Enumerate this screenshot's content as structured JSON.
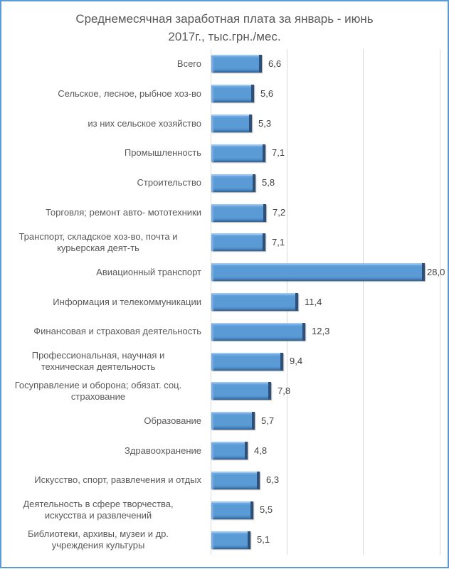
{
  "chart_data": {
    "type": "bar",
    "orientation": "horizontal",
    "title": "Среднемесячная заработная плата за январь - июнь 2017г., тыс.грн./мес.",
    "title_lines": [
      "Среднемесячная заработная плата за январь - июнь",
      "2017г., тыс.грн./мес."
    ],
    "xlabel": "",
    "ylabel": "",
    "xlim": [
      0,
      30
    ],
    "gridlines_at": [
      10,
      20,
      30
    ],
    "grid": true,
    "legend": null,
    "bar_color": "#5b9bd5",
    "categories": [
      "Всего",
      "Сельское, лесное, рыбное хоз-во",
      "из них сельское хозяйство",
      "Промышленность",
      "Строительство",
      "Торговля; ремонт авто- мототехники",
      "Транспорт, складское хоз-во, почта и курьерская деят-ть",
      "Авиационный транспорт",
      "Информация и телекоммуникации",
      "Финансовая и страховая деятельность",
      "Профессиональная, научная и техническая деятельность",
      "Госуправление и оборона; обязат. соц. страхование",
      "Образование",
      "Здравоохранение",
      "Искусство, спорт, развлечения и отдых",
      "Деятельность в сфере творчества, искусства и развлечений",
      "Библиотеки, архивы, музеи и др. учреждения культуры"
    ],
    "values": [
      6.6,
      5.6,
      5.3,
      7.1,
      5.8,
      7.2,
      7.1,
      28.0,
      11.4,
      12.3,
      9.4,
      7.8,
      5.7,
      4.8,
      6.3,
      5.5,
      5.1
    ],
    "value_labels": [
      "6,6",
      "5,6",
      "5,3",
      "7,1",
      "5,8",
      "7,2",
      "7,1",
      "28,0",
      "11,4",
      "12,3",
      "9,4",
      "7,8",
      "5,7",
      "4,8",
      "6,3",
      "5,5",
      "5,1"
    ]
  },
  "rows": [
    {
      "lines": [
        "Всего"
      ],
      "value": 6.6,
      "label": "6,6"
    },
    {
      "lines": [
        "Сельское, лесное, рыбное хоз-во"
      ],
      "value": 5.6,
      "label": "5,6"
    },
    {
      "lines": [
        "из них сельское хозяйство"
      ],
      "value": 5.3,
      "label": "5,3"
    },
    {
      "lines": [
        "Промышленность"
      ],
      "value": 7.1,
      "label": "7,1"
    },
    {
      "lines": [
        "Строительство"
      ],
      "value": 5.8,
      "label": "5,8"
    },
    {
      "lines": [
        "Торговля; ремонт авто- мототехники"
      ],
      "value": 7.2,
      "label": "7,2"
    },
    {
      "lines": [
        "Транспорт, складское хоз-во, почта и",
        "курьерская деят-ть"
      ],
      "value": 7.1,
      "label": "7,1"
    },
    {
      "lines": [
        "Авиационный транспорт"
      ],
      "value": 28.0,
      "label": "28,0"
    },
    {
      "lines": [
        "Информация и телекоммуникации"
      ],
      "value": 11.4,
      "label": "11,4"
    },
    {
      "lines": [
        "Финансовая и страховая деятельность"
      ],
      "value": 12.3,
      "label": "12,3"
    },
    {
      "lines": [
        "Профессиональная, научная и",
        "техническая деятельность"
      ],
      "value": 9.4,
      "label": "9,4"
    },
    {
      "lines": [
        "Госуправление и оборона; обязат. соц.",
        "страхование"
      ],
      "value": 7.8,
      "label": "7,8"
    },
    {
      "lines": [
        "Образование"
      ],
      "value": 5.7,
      "label": "5,7"
    },
    {
      "lines": [
        "Здравоохранение"
      ],
      "value": 4.8,
      "label": "4,8"
    },
    {
      "lines": [
        "Искусство, спорт, развлечения и отдых"
      ],
      "value": 6.3,
      "label": "6,3"
    },
    {
      "lines": [
        "Деятельность в сфере творчества,",
        "искусства и развлечений"
      ],
      "value": 5.5,
      "label": "5,5"
    },
    {
      "lines": [
        "Библиотеки, архивы, музеи и др.",
        "учреждения культуры"
      ],
      "value": 5.1,
      "label": "5,1"
    }
  ]
}
